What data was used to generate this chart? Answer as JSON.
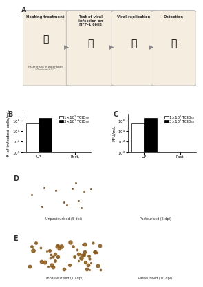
{
  "panel_A_bg": "#f5ede0",
  "panel_label_color": "#333333",
  "fig_bg": "#ffffff",
  "B": {
    "label": "B",
    "categories": [
      "UP",
      "Past."
    ],
    "ylabel": "# of infected cells/mL",
    "ylim_log": [
      1,
      10000000.0
    ],
    "yticks": [
      1,
      10,
      100,
      1000,
      10000,
      100000,
      1000000,
      10000000
    ],
    "bar_white_values": [
      300000.0,
      0.1
    ],
    "bar_black_values": [
      3000000.0,
      0.1
    ],
    "legend_white": "1×10² TCID₅₀",
    "legend_black": "3×10² TCID₅₀",
    "bar_width": 0.35
  },
  "C": {
    "label": "C",
    "categories": [
      "UP",
      "Past."
    ],
    "ylabel": "FFU/mL",
    "ylim_log": [
      1,
      10000000.0
    ],
    "yticks": [
      1,
      10,
      100,
      1000,
      10000,
      100000,
      1000000,
      10000000
    ],
    "bar_white_values": [
      300000.0,
      0.1
    ],
    "bar_black_values": [
      3000000.0,
      0.1
    ],
    "legend_white": "1×10² TCID₅₀",
    "legend_black": "3×10² TCID₅₀",
    "bar_width": 0.35
  },
  "D_labels": [
    "Unpasteurised (5 dpi)",
    "Pasteurised (5 dpi)"
  ],
  "E_labels": [
    "Unpasteurised (10 dpi)",
    "Pasteurised (10 dpi)"
  ],
  "microscopy_unp5_color": "#c8c0a8",
  "microscopy_pas5_color": "#c8c8b8",
  "microscopy_unp10_color": "#b8b098",
  "microscopy_pas10_color": "#c8c8b8",
  "title_fontsize": 5,
  "axis_fontsize": 4.5,
  "tick_fontsize": 4,
  "legend_fontsize": 4
}
